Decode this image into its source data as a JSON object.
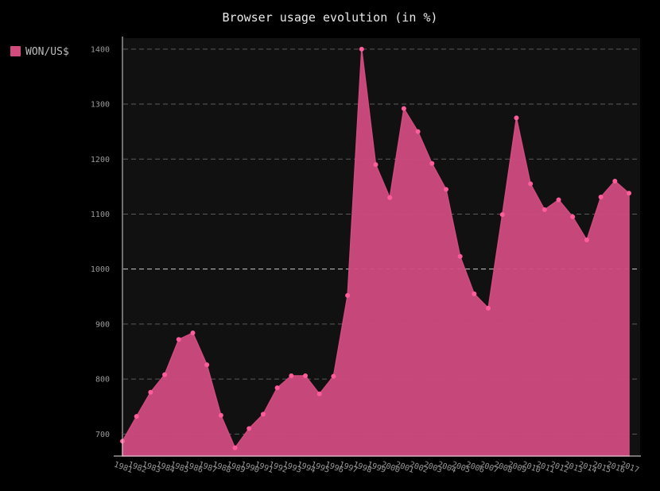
{
  "chart_data": {
    "type": "area",
    "title": "Browser usage evolution (in %)",
    "xlabel": "",
    "ylabel": "",
    "ylim": [
      660,
      1420
    ],
    "y_ticks": [
      700,
      800,
      900,
      1000,
      1100,
      1200,
      1300,
      1400
    ],
    "major_y_tick": 1000,
    "grid": true,
    "legend": "left",
    "x": [
      "1981",
      "1982",
      "1983",
      "1984",
      "1985",
      "1986",
      "1987",
      "1988",
      "1989",
      "1990",
      "1991",
      "1992",
      "1993",
      "1994",
      "1995",
      "1996",
      "1997",
      "1998",
      "1999",
      "2000",
      "2001",
      "2002",
      "2003",
      "2004",
      "2005",
      "2006",
      "2007",
      "2008",
      "2009",
      "2010",
      "2011",
      "2012",
      "2013",
      "2014",
      "2015",
      "2016",
      "2017"
    ],
    "series": [
      {
        "name": "WON/US$",
        "color": "#d14b7f",
        "values": [
          687,
          732,
          776,
          808,
          872,
          884,
          826,
          734,
          675,
          710,
          736,
          784,
          806,
          806,
          773,
          805,
          952,
          1400,
          1190,
          1130,
          1292,
          1250,
          1192,
          1145,
          1023,
          955,
          929,
          1099,
          1275,
          1155,
          1108,
          1126,
          1095,
          1053,
          1131,
          1160,
          1138
        ]
      }
    ]
  }
}
